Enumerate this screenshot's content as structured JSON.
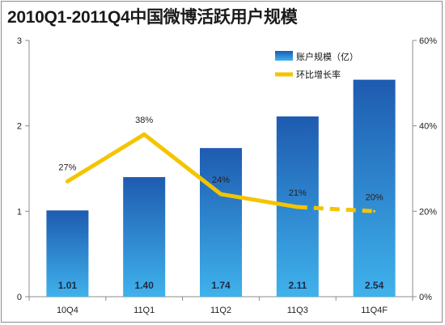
{
  "title": "2010Q1-2011Q4中国微博活跃用户规模",
  "chart_data": {
    "type": "bar",
    "categories": [
      "10Q4",
      "11Q1",
      "11Q2",
      "11Q3",
      "11Q4F"
    ],
    "series": [
      {
        "name": "账户规模（亿）",
        "type": "bar",
        "axis": "left",
        "values": [
          1.01,
          1.4,
          1.74,
          2.11,
          2.54
        ],
        "labels": [
          "1.01",
          "1.40",
          "1.74",
          "2.11",
          "2.54"
        ]
      },
      {
        "name": "环比增长率",
        "type": "line",
        "axis": "right",
        "values": [
          27,
          38,
          24,
          21,
          20
        ],
        "labels": [
          "27%",
          "38%",
          "24%",
          "21%",
          "20%"
        ],
        "dashed_last_segment": true
      }
    ],
    "y_left": {
      "ylim": [
        0,
        3
      ],
      "ticks": [
        "0",
        "1",
        "2",
        "3"
      ]
    },
    "y_right": {
      "ylim": [
        0,
        60
      ],
      "ticks": [
        "0%",
        "20%",
        "40%",
        "60%"
      ]
    },
    "legend": "top-right",
    "grid": false,
    "colors": {
      "bar_top": "#1e5bb0",
      "bar_bottom": "#3fb2ec",
      "line": "#f5c400"
    }
  }
}
